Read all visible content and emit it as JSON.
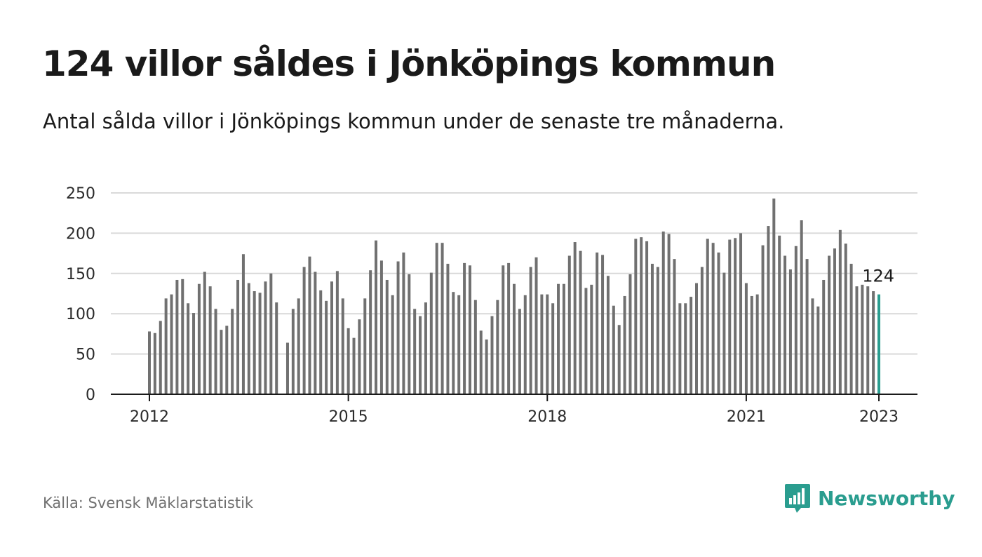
{
  "title": "124 villor såldes i Jönköpings kommun",
  "subtitle": "Antal sålda villor i Jönköpings kommun under de senaste tre månaderna.",
  "source": "Källa: Svensk Mäklarstatistik",
  "brand": {
    "name": "Newsworthy",
    "icon": "bar-chart-speech-bubble-icon",
    "color": "#2a9d8f"
  },
  "colors": {
    "bar": "#707070",
    "highlight": "#2a9d8f",
    "grid": "#d9d9d9",
    "axis": "#1a1a1a"
  },
  "chart_data": {
    "type": "bar",
    "x_start": "2012-01",
    "x_end": "2023-01",
    "x_ticks": [
      "2012",
      "2015",
      "2018",
      "2021",
      "2023"
    ],
    "y_ticks": [
      0,
      50,
      100,
      150,
      200,
      250
    ],
    "ylim": [
      0,
      250
    ],
    "grid": true,
    "highlight_last": true,
    "last_value_label": "124",
    "values": [
      78,
      76,
      91,
      119,
      124,
      142,
      143,
      113,
      101,
      137,
      152,
      134,
      106,
      80,
      85,
      106,
      142,
      174,
      138,
      128,
      126,
      140,
      150,
      114,
      null,
      64,
      106,
      119,
      158,
      171,
      152,
      129,
      116,
      140,
      153,
      119,
      82,
      70,
      93,
      119,
      154,
      191,
      166,
      142,
      123,
      165,
      176,
      149,
      106,
      97,
      114,
      151,
      188,
      188,
      162,
      127,
      123,
      163,
      160,
      117,
      79,
      68,
      97,
      117,
      160,
      163,
      137,
      106,
      123,
      158,
      170,
      124,
      124,
      113,
      137,
      137,
      172,
      189,
      178,
      132,
      136,
      176,
      173,
      147,
      110,
      86,
      122,
      149,
      193,
      195,
      190,
      162,
      158,
      202,
      199,
      168,
      113,
      113,
      121,
      138,
      158,
      193,
      188,
      176,
      151,
      192,
      194,
      200,
      138,
      122,
      124,
      185,
      209,
      243,
      197,
      172,
      155,
      184,
      216,
      168,
      119,
      109,
      142,
      172,
      181,
      204,
      187,
      162,
      134,
      136,
      134,
      128,
      124
    ]
  }
}
